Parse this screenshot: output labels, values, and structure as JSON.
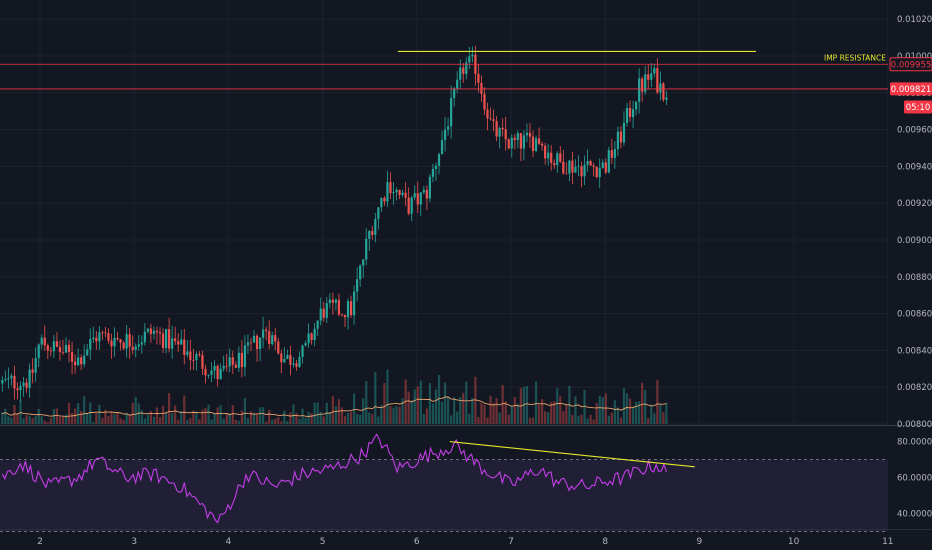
{
  "chart_data": {
    "type": "candlestick",
    "y_axis": {
      "range": [
        0.008,
        0.01025
      ],
      "ticks": [
        "0.010200",
        "0.010000",
        "0.009800",
        "0.009600",
        "0.009400",
        "0.009200",
        "0.009000",
        "0.008800",
        "0.008600",
        "0.008400",
        "0.008200",
        "0.008000"
      ]
    },
    "x_axis": {
      "range": [
        1.6,
        11.0
      ],
      "ticks": [
        "2",
        "3",
        "4",
        "5",
        "6",
        "7",
        "8",
        "9",
        "10",
        "11"
      ]
    },
    "price_badges": [
      {
        "label": "0.009955",
        "value": 0.009955,
        "style": "outline"
      },
      {
        "label": "0.009821",
        "value": 0.009821,
        "style": "filled"
      },
      {
        "label": "05:10",
        "value": 0.009723,
        "style": "filled"
      }
    ],
    "horizontal_lines": [
      {
        "value": 0.009955,
        "color": "#f23645"
      },
      {
        "value": 0.009821,
        "color": "#f23645"
      }
    ],
    "trendlines": [
      {
        "pane": "price",
        "from": [
          5.8,
          0.010025
        ],
        "to": [
          9.6,
          0.010025
        ],
        "color": "#e6e62c"
      },
      {
        "pane": "rsi",
        "from": [
          6.35,
          80.0
        ],
        "to": [
          8.95,
          66.0
        ],
        "color": "#e6e62c"
      }
    ],
    "annotations": [
      {
        "text": "IMP RESISTANCE",
        "value": 0.009955
      }
    ],
    "anchors": [
      [
        1.6,
        0.00822
      ],
      [
        1.9,
        0.00824
      ],
      [
        2.0,
        0.00845
      ],
      [
        2.4,
        0.00835
      ],
      [
        2.6,
        0.00848
      ],
      [
        3.0,
        0.00845
      ],
      [
        3.2,
        0.0085
      ],
      [
        3.6,
        0.00838
      ],
      [
        3.9,
        0.00826
      ],
      [
        4.2,
        0.00838
      ],
      [
        4.4,
        0.00852
      ],
      [
        4.6,
        0.00835
      ],
      [
        4.8,
        0.00838
      ],
      [
        5.0,
        0.00862
      ],
      [
        5.3,
        0.00862
      ],
      [
        5.5,
        0.00905
      ],
      [
        5.7,
        0.00932
      ],
      [
        5.9,
        0.00918
      ],
      [
        6.1,
        0.00925
      ],
      [
        6.3,
        0.0096
      ],
      [
        6.5,
        0.00995
      ],
      [
        6.62,
        0.00995
      ],
      [
        6.8,
        0.0096
      ],
      [
        7.0,
        0.00952
      ],
      [
        7.3,
        0.00955
      ],
      [
        7.45,
        0.00943
      ],
      [
        7.7,
        0.0094
      ],
      [
        8.0,
        0.0094
      ],
      [
        8.15,
        0.00955
      ],
      [
        8.35,
        0.00982
      ],
      [
        8.5,
        0.0099
      ],
      [
        8.6,
        0.00982
      ],
      [
        8.65,
        0.00982
      ]
    ],
    "volume": {
      "base": 0.008,
      "ma_color": "#e8a26a"
    },
    "rsi": {
      "range": [
        32,
        87
      ],
      "ticks": [
        "80.0000",
        "60.0000",
        "40.0000"
      ],
      "bands": [
        70,
        30
      ],
      "anchors": [
        [
          1.6,
          60
        ],
        [
          1.8,
          68
        ],
        [
          2.1,
          55
        ],
        [
          2.4,
          60
        ],
        [
          2.6,
          70
        ],
        [
          2.9,
          60
        ],
        [
          3.2,
          62
        ],
        [
          3.5,
          55
        ],
        [
          3.9,
          35
        ],
        [
          4.2,
          62
        ],
        [
          4.5,
          55
        ],
        [
          4.8,
          62
        ],
        [
          5.1,
          65
        ],
        [
          5.4,
          72
        ],
        [
          5.6,
          82
        ],
        [
          5.8,
          65
        ],
        [
          6.1,
          72
        ],
        [
          6.4,
          78
        ],
        [
          6.7,
          65
        ],
        [
          7.0,
          56
        ],
        [
          7.3,
          65
        ],
        [
          7.5,
          57
        ],
        [
          7.8,
          55
        ],
        [
          8.0,
          58
        ],
        [
          8.2,
          60
        ],
        [
          8.4,
          65
        ],
        [
          8.55,
          67
        ],
        [
          8.65,
          63
        ]
      ]
    }
  }
}
